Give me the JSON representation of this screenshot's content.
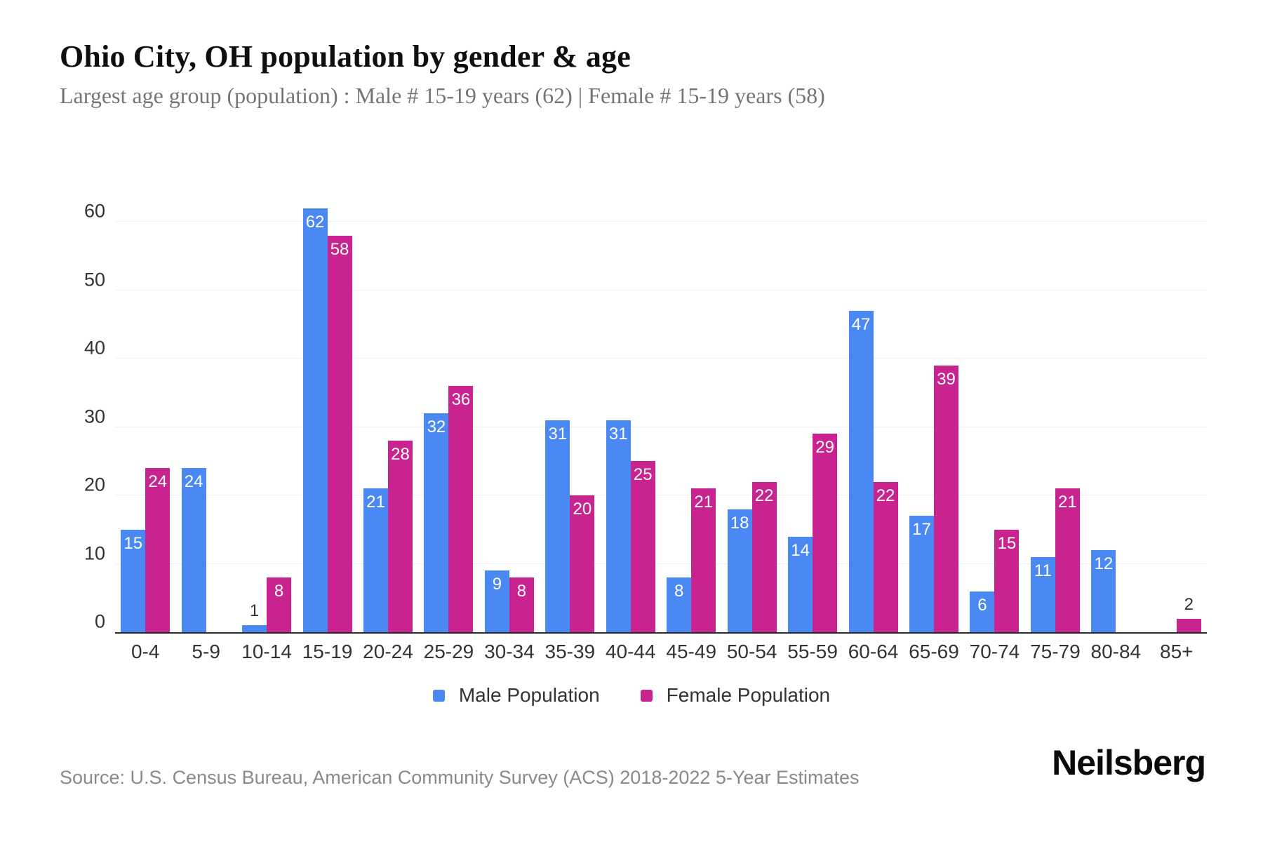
{
  "title": "Ohio City, OH population by gender & age",
  "subtitle": "Largest age group (population) : Male # 15-19 years (62) | Female # 15-19 years (58)",
  "source": "Source: U.S. Census Bureau, American Community Survey (ACS) 2018-2022 5-Year Estimates",
  "brand": "Neilsberg",
  "colors": {
    "male": "#4a89f3",
    "female": "#c9238f",
    "grid": "#f0f0f0",
    "axis_line": "#2a2a2a",
    "tick_text": "#333333",
    "label_inside": "#ffffff",
    "label_outside": "#333333",
    "title_text": "#0f0f0f",
    "subtitle_text": "#757578",
    "source_text": "#8a8a8a"
  },
  "legend": [
    {
      "label": "Male Population",
      "color": "#4a89f3"
    },
    {
      "label": "Female Population",
      "color": "#c9238f"
    }
  ],
  "chart_data": {
    "type": "bar",
    "title": "Ohio City, OH population by gender & age",
    "xlabel": "",
    "ylabel": "",
    "categories": [
      "0-4",
      "5-9",
      "10-14",
      "15-19",
      "20-24",
      "25-29",
      "30-34",
      "35-39",
      "40-44",
      "45-49",
      "50-54",
      "55-59",
      "60-64",
      "65-69",
      "70-74",
      "75-79",
      "80-84",
      "85+"
    ],
    "series": [
      {
        "name": "Male Population",
        "color": "#4a89f3",
        "values": [
          15,
          24,
          1,
          62,
          21,
          32,
          9,
          31,
          31,
          8,
          18,
          14,
          47,
          17,
          6,
          11,
          12,
          0
        ]
      },
      {
        "name": "Female Population",
        "color": "#c9238f",
        "values": [
          24,
          0,
          8,
          58,
          28,
          36,
          8,
          20,
          25,
          21,
          22,
          29,
          22,
          39,
          15,
          21,
          0,
          2
        ]
      }
    ],
    "ylim": [
      0,
      66
    ],
    "yticks": [
      0,
      10,
      20,
      30,
      40,
      50,
      60
    ],
    "grid": true,
    "legend_position": "bottom"
  }
}
